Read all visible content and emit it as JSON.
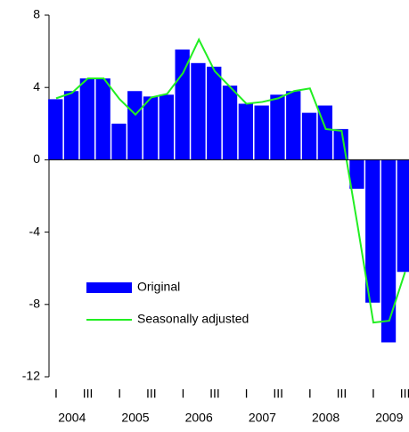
{
  "chart_data": {
    "type": "bar",
    "categories": [
      "I",
      null,
      "III",
      null,
      "I",
      null,
      "III",
      null,
      "I",
      null,
      "III",
      null,
      "I",
      null,
      "III",
      null,
      "I",
      null,
      "III",
      null,
      "I",
      null,
      "III"
    ],
    "year_labels": [
      "2004",
      "2005",
      "2006",
      "2007",
      "2008",
      "2009"
    ],
    "series": [
      {
        "name": "Original",
        "type": "bar",
        "color": "#0000ff",
        "values": [
          3.35,
          3.8,
          4.5,
          4.5,
          2.0,
          3.8,
          3.5,
          3.6,
          6.1,
          5.35,
          5.15,
          4.1,
          3.1,
          3.0,
          3.6,
          3.8,
          2.6,
          3.0,
          1.7,
          -1.6,
          -7.9,
          -10.1,
          -6.2
        ]
      },
      {
        "name": "Seasonally adjusted",
        "type": "line",
        "color": "#22ee22",
        "values": [
          3.4,
          3.7,
          4.5,
          4.5,
          3.35,
          2.5,
          3.45,
          3.65,
          4.8,
          6.65,
          4.9,
          4.0,
          3.1,
          3.2,
          3.4,
          3.8,
          3.95,
          1.7,
          1.6,
          -3.6,
          -9.0,
          -8.9,
          -6.2
        ]
      }
    ],
    "ylim": [
      -12,
      8
    ],
    "yticks": [
      -12,
      -8,
      -4,
      0,
      4,
      8
    ],
    "legend": "lower-left"
  }
}
